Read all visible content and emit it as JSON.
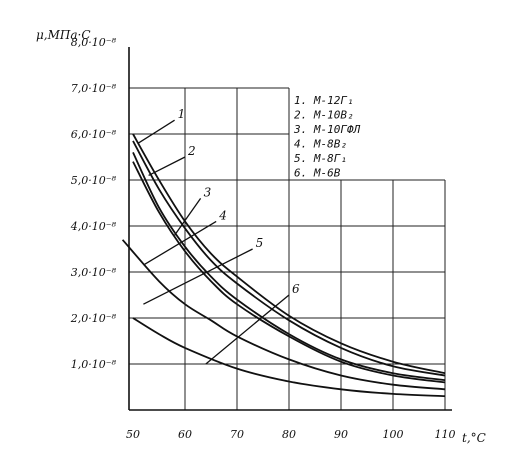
{
  "chart_data": {
    "type": "line",
    "xlabel": "t,°C",
    "ylabel": "μ,МПа·С",
    "xlim": [
      50,
      110
    ],
    "ylim": [
      0,
      8
    ],
    "grid": true,
    "legend_placement": "top-right",
    "x_ticks": [
      {
        "value": 50,
        "label": "50"
      },
      {
        "value": 60,
        "label": "60"
      },
      {
        "value": 70,
        "label": "70"
      },
      {
        "value": 80,
        "label": "80"
      },
      {
        "value": 90,
        "label": "90"
      },
      {
        "value": 100,
        "label": "100"
      },
      {
        "value": 110,
        "label": "110"
      }
    ],
    "y_ticks": [
      {
        "value": 1,
        "label": "1,0·10⁻⁸"
      },
      {
        "value": 2,
        "label": "2,0·10⁻⁸"
      },
      {
        "value": 3,
        "label": "3,0·10⁻⁸"
      },
      {
        "value": 4,
        "label": "4,0·10⁻⁸"
      },
      {
        "value": 5,
        "label": "5,0·10⁻⁸"
      },
      {
        "value": 6,
        "label": "6,0·10⁻⁸"
      },
      {
        "value": 7,
        "label": "7,0·10⁻⁸"
      },
      {
        "value": 8,
        "label": "8,0·10⁻⁸"
      }
    ],
    "legend": [
      "1. М-12Г₁",
      "2. М-10В₂",
      "3. М-10ГФЛ",
      "4. М-8В₂",
      "5. М-8Г₁",
      "6. М-6В"
    ],
    "series": [
      {
        "label": "1",
        "x": [
          50,
          55,
          60,
          65,
          70,
          80,
          90,
          100,
          110
        ],
        "values": [
          6.0,
          5.0,
          4.1,
          3.4,
          2.9,
          2.05,
          1.45,
          1.05,
          0.8
        ]
      },
      {
        "label": "2",
        "x": [
          50,
          55,
          60,
          65,
          70,
          80,
          90,
          100,
          110
        ],
        "values": [
          5.85,
          4.8,
          3.95,
          3.25,
          2.75,
          1.95,
          1.35,
          0.95,
          0.75
        ]
      },
      {
        "label": "3",
        "x": [
          50,
          55,
          60,
          65,
          70,
          80,
          90,
          100,
          110
        ],
        "values": [
          5.6,
          4.4,
          3.55,
          2.9,
          2.4,
          1.65,
          1.1,
          0.8,
          0.65
        ]
      },
      {
        "label": "4",
        "x": [
          50,
          55,
          60,
          65,
          70,
          80,
          90,
          100,
          110
        ],
        "values": [
          5.4,
          4.3,
          3.45,
          2.8,
          2.3,
          1.6,
          1.05,
          0.75,
          0.6
        ]
      },
      {
        "label": "5",
        "x": [
          48,
          55,
          60,
          65,
          70,
          80,
          90,
          100,
          110
        ],
        "values": [
          3.7,
          2.8,
          2.3,
          1.95,
          1.6,
          1.1,
          0.75,
          0.55,
          0.45
        ]
      },
      {
        "label": "6",
        "x": [
          50,
          55,
          60,
          70,
          80,
          90,
          100,
          110
        ],
        "values": [
          2.0,
          1.65,
          1.35,
          0.9,
          0.62,
          0.45,
          0.35,
          0.3
        ]
      }
    ]
  }
}
